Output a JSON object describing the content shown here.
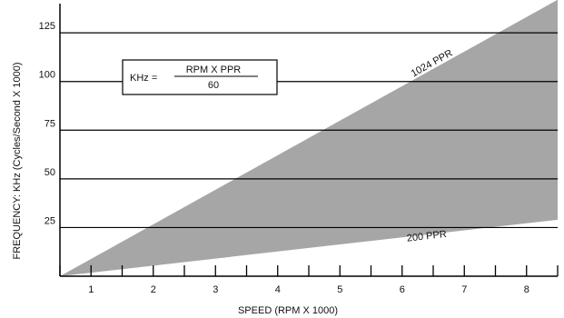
{
  "chart_data": {
    "type": "area",
    "title": "",
    "xlabel": "SPEED (RPM X 1000)",
    "ylabel": "FREQUENCY: KHz (Cycles/Second X 1000)",
    "x_ticks": [
      1,
      2,
      3,
      4,
      5,
      6,
      7,
      8
    ],
    "y_ticks": [
      25,
      50,
      75,
      100,
      125
    ],
    "xlim": [
      0.5,
      8.5
    ],
    "ylim": [
      0,
      140
    ],
    "grid": "horizontal",
    "band_color": "#a6a6a6",
    "series": [
      {
        "name": "1024 PPR",
        "x": [
          0.5,
          8.5
        ],
        "y": [
          0,
          142
        ]
      },
      {
        "name": "200 PPR",
        "x": [
          0.5,
          8.5
        ],
        "y": [
          0,
          29
        ]
      }
    ],
    "annotations": [
      {
        "text": "1024 PPR",
        "x": 6.5,
        "y": 108
      },
      {
        "text": "200 PPR",
        "x": 6.4,
        "y": 19
      }
    ],
    "formula": {
      "lhs": "KHz =",
      "numerator": "RPM X PPR",
      "denominator": "60"
    }
  }
}
